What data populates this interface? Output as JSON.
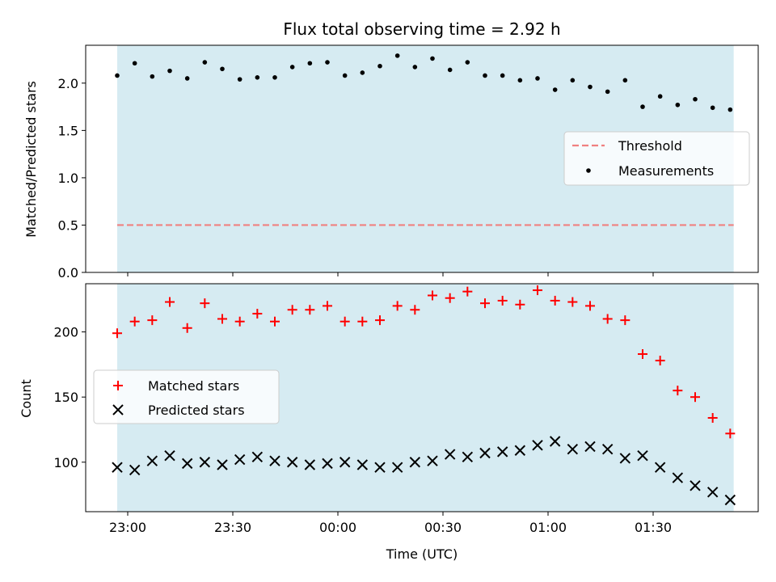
{
  "chart_data": [
    {
      "panel": "top",
      "type": "scatter",
      "title": "Flux total observing time = 2.92 h",
      "xlabel": "",
      "ylabel": "Matched/Predicted stars",
      "x_domain_minutes": [
        -72,
        120
      ],
      "ylim": [
        0,
        2.4
      ],
      "yticks": [
        "0.0",
        "0.5",
        "1.0",
        "1.5",
        "2.0"
      ],
      "yticks_values": [
        0,
        0.5,
        1.0,
        1.5,
        2.0
      ],
      "shaded_span_minutes": [
        -63,
        113
      ],
      "shade_color": "#add8e6",
      "threshold": {
        "name": "Threshold",
        "y": 0.5,
        "color": "#f08080",
        "style": "dashed"
      },
      "series": [
        {
          "name": "Measurements",
          "marker": "dot",
          "color": "#000000",
          "x_minutes": [
            -63,
            -58,
            -53,
            -48,
            -43,
            -38,
            -33,
            -28,
            -23,
            -18,
            -13,
            -8,
            -3,
            2,
            7,
            12,
            17,
            22,
            27,
            32,
            37,
            42,
            47,
            52,
            57,
            62,
            67,
            72,
            77,
            82,
            87,
            92,
            97,
            102,
            107,
            112
          ],
          "y": [
            2.08,
            2.21,
            2.07,
            2.13,
            2.05,
            2.22,
            2.15,
            2.04,
            2.06,
            2.06,
            2.17,
            2.21,
            2.22,
            2.08,
            2.11,
            2.18,
            2.29,
            2.17,
            2.26,
            2.14,
            2.22,
            2.08,
            2.08,
            2.03,
            2.05,
            1.93,
            2.03,
            1.96,
            1.91,
            2.03,
            1.75,
            1.86,
            1.77,
            1.83,
            1.74,
            1.72
          ]
        }
      ],
      "legend": [
        "Threshold",
        "Measurements"
      ],
      "legend_position": "center-right"
    },
    {
      "panel": "bottom",
      "type": "scatter",
      "xlabel": "Time (UTC)",
      "ylabel": "Count",
      "x_domain_minutes": [
        -72,
        120
      ],
      "ylim": [
        62,
        237
      ],
      "yticks": [
        "100",
        "150",
        "200"
      ],
      "yticks_values": [
        100,
        150,
        200
      ],
      "xticks": [
        "23:00",
        "23:30",
        "00:00",
        "00:30",
        "01:00",
        "01:30"
      ],
      "xticks_minutes": [
        -60,
        -30,
        0,
        30,
        60,
        90
      ],
      "shaded_span_minutes": [
        -63,
        113
      ],
      "series": [
        {
          "name": "Matched stars",
          "marker": "plus",
          "color": "#ff0000",
          "x_minutes": [
            -63,
            -58,
            -53,
            -48,
            -43,
            -38,
            -33,
            -28,
            -23,
            -18,
            -13,
            -8,
            -3,
            2,
            7,
            12,
            17,
            22,
            27,
            32,
            37,
            42,
            47,
            52,
            57,
            62,
            67,
            72,
            77,
            82,
            87,
            92,
            97,
            102,
            107,
            112
          ],
          "y": [
            199,
            208,
            209,
            223,
            203,
            222,
            210,
            208,
            214,
            208,
            217,
            217,
            220,
            208,
            208,
            209,
            220,
            217,
            228,
            226,
            231,
            222,
            224,
            221,
            232,
            224,
            223,
            220,
            210,
            209,
            183,
            178,
            155,
            150,
            134,
            122
          ]
        },
        {
          "name": "Predicted stars",
          "marker": "x",
          "color": "#000000",
          "x_minutes": [
            -63,
            -58,
            -53,
            -48,
            -43,
            -38,
            -33,
            -28,
            -23,
            -18,
            -13,
            -8,
            -3,
            2,
            7,
            12,
            17,
            22,
            27,
            32,
            37,
            42,
            47,
            52,
            57,
            62,
            67,
            72,
            77,
            82,
            87,
            92,
            97,
            102,
            107,
            112
          ],
          "y": [
            96,
            94,
            101,
            105,
            99,
            100,
            98,
            102,
            104,
            101,
            100,
            98,
            99,
            100,
            98,
            96,
            96,
            100,
            101,
            106,
            104,
            107,
            108,
            109,
            113,
            116,
            110,
            112,
            110,
            103,
            105,
            96,
            88,
            82,
            77,
            71
          ]
        }
      ],
      "legend": [
        "Matched stars",
        "Predicted stars"
      ],
      "legend_position": "center-left"
    }
  ]
}
